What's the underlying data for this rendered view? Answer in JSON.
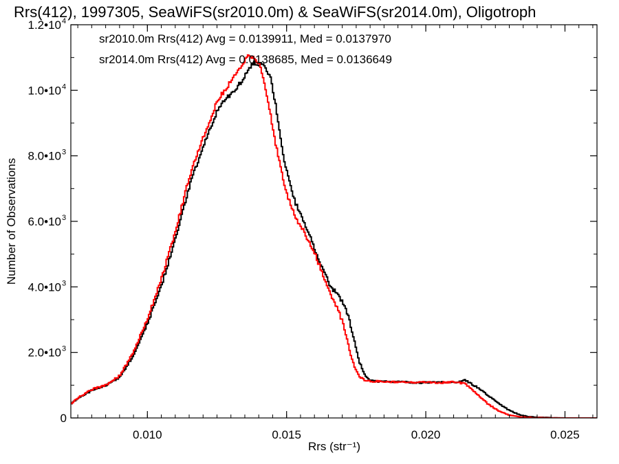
{
  "chart_data": {
    "type": "line",
    "title": "Rrs(412), 1997305, SeaWiFS(sr2010.0m) & SeaWiFS(sr2014.0m), Oligotroph",
    "xlabel": "Rrs (str⁻¹)",
    "ylabel": "Number of Observations",
    "xlim": [
      0.00725,
      0.02615
    ],
    "ylim": [
      0,
      12000
    ],
    "x_ticks": [
      {
        "value": 0.01,
        "label": "0.010"
      },
      {
        "value": 0.015,
        "label": "0.015"
      },
      {
        "value": 0.02,
        "label": "0.020"
      },
      {
        "value": 0.025,
        "label": "0.025"
      }
    ],
    "y_ticks": [
      {
        "value": 0,
        "mant": "0",
        "exp": ""
      },
      {
        "value": 2000,
        "mant": "2.0•10",
        "exp": "3"
      },
      {
        "value": 4000,
        "mant": "4.0•10",
        "exp": "3"
      },
      {
        "value": 6000,
        "mant": "6.0•10",
        "exp": "3"
      },
      {
        "value": 8000,
        "mant": "8.0•10",
        "exp": "3"
      },
      {
        "value": 10000,
        "mant": "1.0•10",
        "exp": "4"
      },
      {
        "value": 12000,
        "mant": "1.2•10",
        "exp": "4"
      }
    ],
    "grid": false,
    "legend": "top-left",
    "annotations": [
      {
        "text": "sr2010.0m Rrs(412) Avg = 0.0139911, Med = 0.0137970",
        "color": "#000000"
      },
      {
        "text": "sr2014.0m Rrs(412) Avg = 0.0138685, Med = 0.0136649",
        "color": "#ff0000"
      }
    ],
    "series": [
      {
        "color": "#000000",
        "x": [
          0.00725,
          0.0075,
          0.008,
          0.0085,
          0.009,
          0.0095,
          0.01,
          0.0105,
          0.011,
          0.0115,
          0.012,
          0.0125,
          0.0128,
          0.013,
          0.0133,
          0.0136,
          0.0138,
          0.014,
          0.0142,
          0.0144,
          0.0146,
          0.0148,
          0.015,
          0.0153,
          0.0156,
          0.016,
          0.0163,
          0.0166,
          0.0168,
          0.017,
          0.0172,
          0.0174,
          0.0176,
          0.0178,
          0.018,
          0.0182,
          0.0185,
          0.019,
          0.0195,
          0.02,
          0.0205,
          0.021,
          0.0214,
          0.0218,
          0.0222,
          0.0226,
          0.023,
          0.0234,
          0.0238,
          0.0242,
          0.025,
          0.0262
        ],
        "y": [
          450,
          600,
          850,
          1000,
          1250,
          1950,
          2900,
          4100,
          5500,
          7100,
          8350,
          9400,
          9750,
          9900,
          10200,
          10600,
          10850,
          10800,
          10750,
          10400,
          9500,
          8300,
          7450,
          6550,
          6000,
          5150,
          4500,
          3950,
          3800,
          3500,
          3100,
          2400,
          1700,
          1300,
          1150,
          1120,
          1110,
          1100,
          1080,
          1080,
          1090,
          1080,
          1150,
          950,
          700,
          440,
          220,
          80,
          30,
          10,
          0,
          0
        ]
      },
      {
        "color": "#ff0000",
        "x": [
          0.00725,
          0.0075,
          0.008,
          0.0085,
          0.009,
          0.0095,
          0.01,
          0.0105,
          0.011,
          0.0115,
          0.012,
          0.0125,
          0.0128,
          0.013,
          0.0133,
          0.0136,
          0.0138,
          0.014,
          0.0142,
          0.0144,
          0.0146,
          0.0148,
          0.015,
          0.0153,
          0.0156,
          0.016,
          0.0163,
          0.0166,
          0.0168,
          0.017,
          0.0172,
          0.0174,
          0.0176,
          0.0178,
          0.018,
          0.0182,
          0.0185,
          0.019,
          0.0195,
          0.02,
          0.0205,
          0.021,
          0.0214,
          0.0218,
          0.0222,
          0.0226,
          0.023,
          0.0234,
          0.0238,
          0.0242,
          0.025,
          0.0262
        ],
        "y": [
          450,
          620,
          880,
          1000,
          1300,
          2050,
          3050,
          4300,
          5750,
          7400,
          8600,
          9700,
          10050,
          10300,
          10650,
          11050,
          11000,
          10800,
          10100,
          9250,
          8300,
          7500,
          6800,
          6100,
          5700,
          5000,
          4350,
          3700,
          3350,
          2900,
          2200,
          1600,
          1250,
          1150,
          1120,
          1120,
          1100,
          1100,
          1080,
          1090,
          1070,
          1100,
          1050,
          750,
          430,
          220,
          80,
          30,
          10,
          5,
          0,
          0
        ]
      }
    ]
  }
}
